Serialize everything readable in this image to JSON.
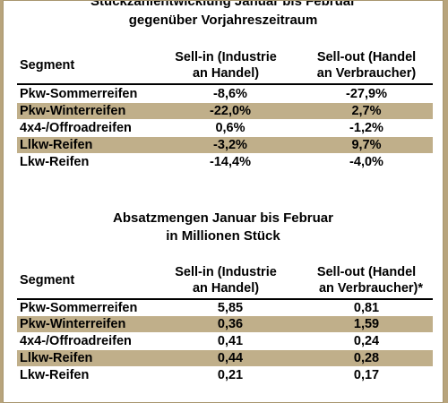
{
  "table1": {
    "title_line1": "Stückzahlentwicklung Januar bis Februar",
    "title_line2": "gegenüber Vorjahreszeitraum",
    "header": {
      "segment": "Segment",
      "sellin_line1": "Sell-in (Industrie",
      "sellin_line2": "an Handel)",
      "sellout_line1": "Sell-out (Handel",
      "sellout_line2": "an Verbraucher)"
    },
    "rows": [
      {
        "segment": "Pkw-Sommerreifen",
        "sellin": "-8,6%",
        "sellout": "-27,9%"
      },
      {
        "segment": "Pkw-Winterreifen",
        "sellin": "-22,0%",
        "sellout": "2,7%"
      },
      {
        "segment": "4x4-/Offroadreifen",
        "sellin": "0,6%",
        "sellout": "-1,2%"
      },
      {
        "segment": "Llkw-Reifen",
        "sellin": "-3,2%",
        "sellout": "9,7%"
      },
      {
        "segment": "Lkw-Reifen",
        "sellin": "-14,4%",
        "sellout": "-4,0%"
      }
    ]
  },
  "table2": {
    "title_line1": "Absatzmengen Januar bis Februar",
    "title_line2": "in Millionen Stück",
    "header": {
      "segment": "Segment",
      "sellin_line1": "Sell-in (Industrie",
      "sellin_line2": "an Handel)",
      "sellout_line1": "Sell-out (Handel",
      "sellout_line2": "an Verbraucher)*"
    },
    "rows": [
      {
        "segment": "Pkw-Sommerreifen",
        "sellin": "5,85",
        "sellout": "0,81"
      },
      {
        "segment": "Pkw-Winterreifen",
        "sellin": "0,36",
        "sellout": "1,59"
      },
      {
        "segment": "4x4-/Offroadreifen",
        "sellin": "0,41",
        "sellout": "0,24"
      },
      {
        "segment": "Llkw-Reifen",
        "sellin": "0,44",
        "sellout": "0,28"
      },
      {
        "segment": "Lkw-Reifen",
        "sellin": "0,21",
        "sellout": "0,17"
      }
    ]
  },
  "colors": {
    "shaded_row": "#c0af8a",
    "background": "#b8a47c"
  }
}
